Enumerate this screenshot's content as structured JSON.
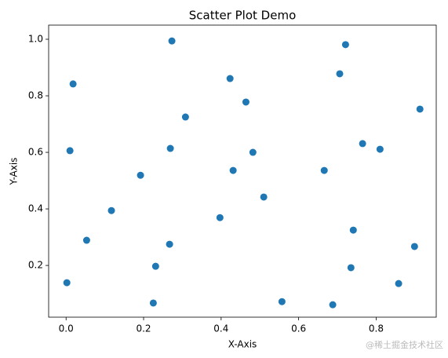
{
  "chart_data": {
    "type": "scatter",
    "title": "Scatter Plot Demo",
    "x_label": "X-Axis",
    "y_label": "Y-Axis",
    "watermark": "@稀土掘金技术社区",
    "color": "#1f77b4",
    "x": [
      0.273,
      0.018,
      0.01,
      0.721,
      0.706,
      0.423,
      0.464,
      0.308,
      0.913,
      0.269,
      0.482,
      0.765,
      0.81,
      0.431,
      0.666,
      0.192,
      0.51,
      0.117,
      0.397,
      0.741,
      0.053,
      0.267,
      0.899,
      0.231,
      0.735,
      0.002,
      0.858,
      0.225,
      0.557,
      0.688
    ],
    "values": [
      0.994,
      0.842,
      0.606,
      0.981,
      0.878,
      0.861,
      0.778,
      0.725,
      0.753,
      0.614,
      0.6,
      0.631,
      0.611,
      0.536,
      0.536,
      0.519,
      0.442,
      0.394,
      0.369,
      0.325,
      0.289,
      0.275,
      0.267,
      0.197,
      0.192,
      0.139,
      0.136,
      0.067,
      0.072,
      0.061
    ],
    "xlim": [
      -0.045,
      0.955
    ],
    "ylim": [
      0.017,
      1.05
    ],
    "xticks": [
      {
        "value": 0,
        "label": "0.0"
      },
      0.2,
      0.4,
      0.6,
      0.8
    ],
    "yticks": [
      0.2,
      0.4,
      0.6,
      0.8,
      {
        "value": 1,
        "label": "1.0"
      }
    ],
    "grid": false
  }
}
